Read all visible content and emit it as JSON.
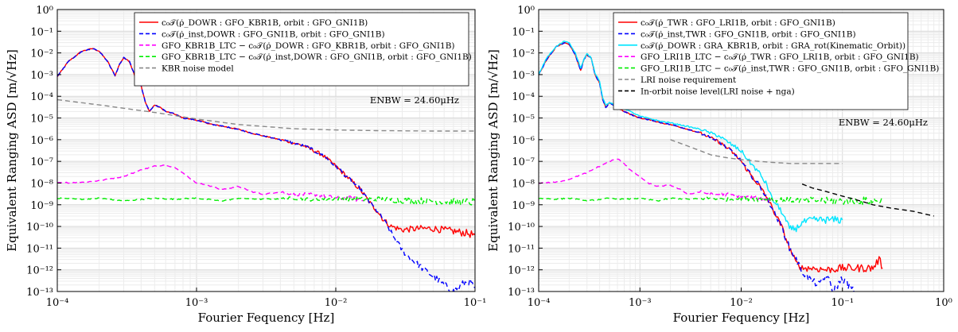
{
  "chart_data": [
    {
      "type": "line",
      "xscale": "log",
      "yscale": "log",
      "xlim": [
        0.0001,
        0.1
      ],
      "ylim": [
        1e-13,
        1
      ],
      "grid": true,
      "xlabel": "Fourier Fequency [Hz]",
      "ylabel": "Equivalent Ranging ASD [m/√Hz]",
      "xtick_labels": [
        "10⁻⁴",
        "10⁻³",
        "10⁻²",
        "10⁻¹"
      ],
      "ytick_labels": [
        "10⁻¹³",
        "10⁻¹²",
        "10⁻¹¹",
        "10⁻¹⁰",
        "10⁻⁹",
        "10⁻⁸",
        "10⁻⁷",
        "10⁻⁶",
        "10⁻⁵",
        "10⁻⁴",
        "10⁻³",
        "10⁻²",
        "10⁻¹",
        "10⁰"
      ],
      "legend_position": "top-right",
      "annotation": "ENBW = 24.60μHz",
      "series": [
        {
          "name": "c₀𝒯(ρ̇_DOWR : GFO_KBR1B, orbit : GFO_GNI1B)",
          "color": "#ff0000",
          "style": "solid",
          "x": [
            0.0001,
            0.00012,
            0.00015,
            0.00018,
            0.0002,
            0.00023,
            0.00026,
            0.00028,
            0.0003,
            0.00033,
            0.00036,
            0.0004,
            0.00043,
            0.00046,
            0.0005,
            0.00055,
            0.0006,
            0.0007,
            0.0008,
            0.001,
            0.0013,
            0.0016,
            0.002,
            0.0025,
            0.003,
            0.004,
            0.005,
            0.006,
            0.008,
            0.01,
            0.012,
            0.015,
            0.018,
            0.02,
            0.022,
            0.025,
            0.03,
            0.04,
            0.05,
            0.07,
            0.085,
            0.1
          ],
          "y": [
            0.0008,
            0.004,
            0.012,
            0.016,
            0.012,
            0.004,
            0.0009,
            0.003,
            0.006,
            0.004,
            0.0009,
            0.0003,
            5e-05,
            2e-05,
            4e-05,
            3e-05,
            2e-05,
            1.5e-05,
            1e-05,
            8e-06,
            5e-06,
            4e-06,
            3e-06,
            2e-06,
            1.5e-06,
            1e-06,
            7e-07,
            5e-07,
            2e-07,
            6e-08,
            2e-08,
            5e-09,
            1e-09,
            5e-10,
            2e-10,
            1e-10,
            7e-11,
            8e-11,
            8e-11,
            6e-11,
            5e-11,
            4e-11
          ]
        },
        {
          "name": "c₀𝒯(ρ̇_inst,DOWR : GFO_GNI1B, orbit : GFO_GNI1B)",
          "color": "#0000ff",
          "style": "dashed",
          "x": [
            0.0001,
            0.00012,
            0.00015,
            0.00018,
            0.0002,
            0.00023,
            0.00026,
            0.00028,
            0.0003,
            0.00033,
            0.00036,
            0.0004,
            0.00043,
            0.00046,
            0.0005,
            0.00055,
            0.0006,
            0.0007,
            0.0008,
            0.001,
            0.0013,
            0.0016,
            0.002,
            0.0025,
            0.003,
            0.004,
            0.005,
            0.006,
            0.008,
            0.01,
            0.012,
            0.015,
            0.018,
            0.02,
            0.022,
            0.025,
            0.03,
            0.035,
            0.04,
            0.05,
            0.06,
            0.07,
            0.08,
            0.09,
            0.1
          ],
          "y": [
            0.0008,
            0.004,
            0.012,
            0.016,
            0.012,
            0.004,
            0.0009,
            0.003,
            0.006,
            0.004,
            0.0009,
            0.0003,
            5e-05,
            2e-05,
            4e-05,
            3e-05,
            2e-05,
            1.5e-05,
            1e-05,
            8e-06,
            5e-06,
            4e-06,
            3e-06,
            2e-06,
            1.5e-06,
            1e-06,
            7e-07,
            5e-07,
            2e-07,
            6e-08,
            2e-08,
            5e-09,
            1e-09,
            5e-10,
            2e-10,
            5e-11,
            8e-12,
            3e-12,
            1.5e-12,
            5e-13,
            2e-13,
            1e-13,
            2e-13,
            3e-13,
            1.5e-13
          ]
        },
        {
          "name": "GFO_KBR1B_LTC − c₀𝒯(ρ̇_DOWR : GFO_KBR1B, orbit : GFO_GNI1B)",
          "color": "#ff00ff",
          "style": "dashed",
          "x": [
            0.0001,
            0.00015,
            0.0002,
            0.0003,
            0.0004,
            0.0005,
            0.0006,
            0.0007,
            0.0008,
            0.001,
            0.0012,
            0.0015,
            0.002,
            0.0025,
            0.003,
            0.004,
            0.005,
            0.007,
            0.01,
            0.013,
            0.016
          ],
          "y": [
            1e-08,
            1.1e-08,
            1.3e-08,
            2e-08,
            4e-08,
            6e-08,
            7e-08,
            5e-08,
            3e-08,
            1e-08,
            8e-09,
            5e-09,
            7e-09,
            4e-09,
            3e-09,
            4e-09,
            3e-09,
            3e-09,
            2e-09,
            2e-09,
            1.5e-09
          ]
        },
        {
          "name": "GFO_KBR1B_LTC − c₀𝒯(ρ̇_inst,DOWR : GFO_GNI1B, orbit : GFO_GNI1B)",
          "color": "#00ee00",
          "style": "dashed",
          "x": [
            0.0001,
            0.00015,
            0.0002,
            0.0003,
            0.0005,
            0.0007,
            0.001,
            0.0015,
            0.002,
            0.003,
            0.005,
            0.007,
            0.01,
            0.015,
            0.02,
            0.03,
            0.05,
            0.07,
            0.1
          ],
          "y": [
            2e-09,
            1.8e-09,
            2e-09,
            1.5e-09,
            2e-09,
            1.8e-09,
            2e-09,
            1.5e-09,
            2e-09,
            1.8e-09,
            2e-09,
            1.7e-09,
            2e-09,
            1.8e-09,
            1.8e-09,
            1.6e-09,
            1.5e-09,
            1.4e-09,
            1.3e-09
          ]
        },
        {
          "name": "KBR noise model",
          "color": "#888888",
          "style": "dashed",
          "x": [
            0.0001,
            0.0002,
            0.0005,
            0.001,
            0.002,
            0.005,
            0.01,
            0.02,
            0.05,
            0.1
          ],
          "y": [
            7e-05,
            4e-05,
            1.8e-05,
            9e-06,
            5e-06,
            3.2e-06,
            2.8e-06,
            2.6e-06,
            2.5e-06,
            2.5e-06
          ]
        }
      ]
    },
    {
      "type": "line",
      "xscale": "log",
      "yscale": "log",
      "xlim": [
        0.0001,
        1
      ],
      "ylim": [
        1e-13,
        1
      ],
      "grid": true,
      "xlabel": "Fourier Fequency [Hz]",
      "ylabel": "Equivalent Ranging ASD [m/√Hz]",
      "xtick_labels": [
        "10⁻⁴",
        "10⁻³",
        "10⁻²",
        "10⁻¹",
        "10⁰"
      ],
      "ytick_labels": [
        "10⁻¹³",
        "10⁻¹²",
        "10⁻¹¹",
        "10⁻¹⁰",
        "10⁻⁹",
        "10⁻⁸",
        "10⁻⁷",
        "10⁻⁶",
        "10⁻⁵",
        "10⁻⁴",
        "10⁻³",
        "10⁻²",
        "10⁻¹",
        "10⁰"
      ],
      "legend_position": "top-right",
      "annotation": "ENBW = 24.60μHz",
      "series": [
        {
          "name": "c₀𝒯(ρ̇_TWR : GFO_LRI1B, orbit : GFO_GNI1B)",
          "color": "#ff0000",
          "style": "solid",
          "x": [
            0.0001,
            0.00012,
            0.00015,
            0.00018,
            0.0002,
            0.00023,
            0.00026,
            0.00028,
            0.0003,
            0.00033,
            0.00036,
            0.0004,
            0.00043,
            0.00046,
            0.0005,
            0.00055,
            0.0006,
            0.0007,
            0.0008,
            0.001,
            0.0013,
            0.0016,
            0.002,
            0.003,
            0.004,
            0.005,
            0.006,
            0.008,
            0.01,
            0.012,
            0.015,
            0.018,
            0.02,
            0.025,
            0.03,
            0.035,
            0.04,
            0.05,
            0.07,
            0.1,
            0.15,
            0.2,
            0.23,
            0.25
          ],
          "y": [
            0.001,
            0.005,
            0.02,
            0.03,
            0.025,
            0.008,
            0.0015,
            0.005,
            0.008,
            0.006,
            0.001,
            0.0004,
            7e-05,
            3e-05,
            5e-05,
            4e-05,
            3e-05,
            2e-05,
            1.5e-05,
            1e-05,
            8e-06,
            6e-06,
            5e-06,
            3e-06,
            2e-06,
            1.2e-06,
            8e-07,
            3e-07,
            1e-07,
            3e-08,
            8e-09,
            2e-09,
            8e-10,
            1e-10,
            1e-11,
            2e-12,
            1.2e-12,
            1.2e-12,
            1e-12,
            1.2e-12,
            1.2e-12,
            1.2e-12,
            3e-12,
            1.2e-12
          ]
        },
        {
          "name": "c₀𝒯(ρ̇_inst,TWR : GFO_GNI1B, orbit : GFO_GNI1B)",
          "color": "#0000ff",
          "style": "dashed",
          "x": [
            0.0001,
            0.00012,
            0.00015,
            0.00018,
            0.0002,
            0.00023,
            0.00026,
            0.00028,
            0.0003,
            0.00033,
            0.00036,
            0.0004,
            0.00043,
            0.00046,
            0.0005,
            0.00055,
            0.0006,
            0.0007,
            0.0008,
            0.001,
            0.0013,
            0.0016,
            0.002,
            0.003,
            0.004,
            0.005,
            0.006,
            0.008,
            0.01,
            0.012,
            0.015,
            0.018,
            0.02,
            0.025,
            0.03,
            0.035,
            0.04,
            0.05,
            0.06,
            0.07,
            0.08,
            0.1,
            0.13
          ],
          "y": [
            0.001,
            0.005,
            0.02,
            0.03,
            0.025,
            0.008,
            0.0015,
            0.005,
            0.008,
            0.006,
            0.001,
            0.0004,
            7e-05,
            3e-05,
            5e-05,
            4e-05,
            3e-05,
            2e-05,
            1.5e-05,
            1e-05,
            8e-06,
            6e-06,
            5e-06,
            3e-06,
            2e-06,
            1.2e-06,
            8e-07,
            3e-07,
            1e-07,
            3e-08,
            8e-09,
            2e-09,
            8e-10,
            1e-10,
            1e-11,
            3e-12,
            8e-13,
            3e-13,
            2e-13,
            6e-13,
            1e-13,
            4e-13,
            1e-13
          ]
        },
        {
          "name": "c₀𝒯(ρ̇_DOWR : GRA_KBR1B, orbit : GRA_rot(Kinematic_Orbit))",
          "color": "#00e5ff",
          "style": "solid",
          "x": [
            0.0001,
            0.00012,
            0.00015,
            0.00018,
            0.0002,
            0.00023,
            0.00026,
            0.00028,
            0.0003,
            0.00033,
            0.00036,
            0.0004,
            0.00043,
            0.00046,
            0.0005,
            0.0006,
            0.0008,
            0.001,
            0.0013,
            0.0016,
            0.002,
            0.003,
            0.004,
            0.005,
            0.006,
            0.008,
            0.01,
            0.012,
            0.015,
            0.018,
            0.02,
            0.025,
            0.03,
            0.035,
            0.04,
            0.05,
            0.06,
            0.07,
            0.08,
            0.1
          ],
          "y": [
            0.001,
            0.006,
            0.02,
            0.035,
            0.03,
            0.01,
            0.002,
            0.005,
            0.009,
            0.006,
            0.0012,
            0.0005,
            8e-05,
            4e-05,
            5e-05,
            4e-05,
            2e-05,
            1.2e-05,
            9e-06,
            7e-06,
            6e-06,
            4e-06,
            3e-06,
            2e-06,
            1.5e-06,
            6e-07,
            3e-07,
            1e-07,
            3e-08,
            8e-09,
            2e-09,
            5e-10,
            8e-11,
            8e-11,
            1.5e-10,
            2e-10,
            2e-10,
            2e-10,
            2e-10,
            2e-10
          ]
        },
        {
          "name": "GFO_LRI1B_LTC − c₀𝒯(ρ̇_TWR : GFO_LRI1B, orbit : GFO_GNI1B)",
          "color": "#ff00ff",
          "style": "dashed",
          "x": [
            0.0001,
            0.00015,
            0.0002,
            0.0003,
            0.0004,
            0.0005,
            0.0006,
            0.0007,
            0.0008,
            0.001,
            0.0012,
            0.0015,
            0.002,
            0.0025,
            0.003,
            0.004,
            0.005,
            0.007,
            0.01,
            0.013,
            0.016,
            0.02
          ],
          "y": [
            1e-08,
            1.1e-08,
            1.5e-08,
            3e-08,
            6e-08,
            1e-07,
            1.3e-07,
            8e-08,
            4e-08,
            2e-08,
            1e-08,
            7e-09,
            8e-09,
            5e-09,
            3e-09,
            4e-09,
            3e-09,
            3e-09,
            2.5e-09,
            2e-09,
            2e-09,
            1.8e-09
          ]
        },
        {
          "name": "GFO_LRI1B_LTC − c₀𝒯(ρ̇_inst,TWR : GFO_GNI1B, orbit : GFO_GNI1B)",
          "color": "#00ee00",
          "style": "dashed",
          "x": [
            0.0001,
            0.00015,
            0.0002,
            0.0003,
            0.0005,
            0.0007,
            0.001,
            0.0015,
            0.002,
            0.003,
            0.005,
            0.007,
            0.01,
            0.015,
            0.02,
            0.03,
            0.05,
            0.07,
            0.1,
            0.15,
            0.2,
            0.25
          ],
          "y": [
            2e-09,
            1.8e-09,
            2e-09,
            1.5e-09,
            2e-09,
            1.8e-09,
            2e-09,
            1.5e-09,
            2e-09,
            1.8e-09,
            2e-09,
            1.7e-09,
            2e-09,
            1.8e-09,
            1.8e-09,
            1.6e-09,
            1.6e-09,
            1.5e-09,
            1.5e-09,
            1.5e-09,
            1.5e-09,
            1.5e-09
          ]
        },
        {
          "name": "LRI noise requirement",
          "color": "#888888",
          "style": "dashed",
          "x": [
            0.002,
            0.003,
            0.004,
            0.005,
            0.007,
            0.01,
            0.015,
            0.02,
            0.03,
            0.05,
            0.1
          ],
          "y": [
            1e-06,
            5e-07,
            3e-07,
            2e-07,
            1.5e-07,
            1.2e-07,
            1e-07,
            9e-08,
            8e-08,
            8e-08,
            8e-08
          ]
        },
        {
          "name": "In-orbit noise level(LRI noise + nga)",
          "color": "#000000",
          "style": "dashed",
          "x": [
            0.04,
            0.05,
            0.07,
            0.1,
            0.15,
            0.2,
            0.3,
            0.5,
            0.8
          ],
          "y": [
            9e-09,
            6e-09,
            4e-09,
            2.5e-09,
            1.5e-09,
            1e-09,
            7e-10,
            5e-10,
            3e-10
          ]
        }
      ]
    }
  ]
}
